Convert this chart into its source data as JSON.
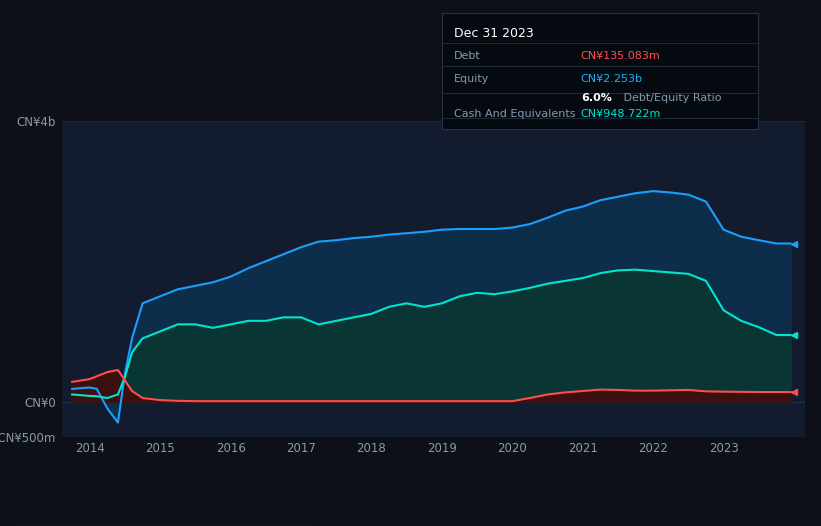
{
  "background_color": "#0d1117",
  "plot_bg_color": "#131b2e",
  "title_box": {
    "date": "Dec 31 2023",
    "debt_label": "Debt",
    "debt_value": "CN¥135.083m",
    "debt_color": "#ff4d4d",
    "equity_label": "Equity",
    "equity_value": "CN¥2.253b",
    "equity_color": "#1ab3ff",
    "ratio_value": "6.0%",
    "ratio_text": " Debt/Equity Ratio",
    "cash_label": "Cash And Equivalents",
    "cash_value": "CN¥948.722m",
    "cash_color": "#00e5cc"
  },
  "ylim": [
    -500,
    4000
  ],
  "ytick_positions": [
    -500,
    0,
    4000
  ],
  "ytick_labels": [
    "-CN¥500m",
    "CN¥0",
    "CN¥4b"
  ],
  "xlim": [
    2013.6,
    2024.15
  ],
  "xticks": [
    2014,
    2015,
    2016,
    2017,
    2018,
    2019,
    2020,
    2021,
    2022,
    2023
  ],
  "grid_color": "#1e2a3a",
  "equity_line_color": "#1a9fff",
  "equity_fill_color": "#0d2e4a",
  "cash_line_color": "#00e5cc",
  "cash_fill_color": "#0a3535",
  "debt_line_color": "#ff4d4d",
  "debt_fill_color": "#3a1010",
  "years": [
    2013.75,
    2014.0,
    2014.1,
    2014.25,
    2014.4,
    2014.5,
    2014.6,
    2014.75,
    2015.0,
    2015.25,
    2015.5,
    2015.75,
    2016.0,
    2016.25,
    2016.5,
    2016.75,
    2017.0,
    2017.25,
    2017.5,
    2017.75,
    2018.0,
    2018.25,
    2018.5,
    2018.75,
    2019.0,
    2019.25,
    2019.5,
    2019.75,
    2020.0,
    2020.25,
    2020.5,
    2020.75,
    2021.0,
    2021.25,
    2021.5,
    2021.75,
    2022.0,
    2022.25,
    2022.5,
    2022.75,
    2023.0,
    2023.25,
    2023.5,
    2023.75,
    2023.95
  ],
  "equity": [
    180,
    200,
    180,
    -100,
    -300,
    400,
    900,
    1400,
    1500,
    1600,
    1650,
    1700,
    1780,
    1900,
    2000,
    2100,
    2200,
    2280,
    2300,
    2330,
    2350,
    2380,
    2400,
    2420,
    2450,
    2460,
    2460,
    2460,
    2480,
    2530,
    2620,
    2720,
    2780,
    2870,
    2920,
    2970,
    3000,
    2980,
    2950,
    2850,
    2450,
    2350,
    2300,
    2253,
    2253
  ],
  "cash": [
    100,
    80,
    75,
    50,
    100,
    350,
    700,
    900,
    1000,
    1100,
    1100,
    1050,
    1100,
    1150,
    1150,
    1200,
    1200,
    1100,
    1150,
    1200,
    1250,
    1350,
    1400,
    1350,
    1400,
    1500,
    1550,
    1530,
    1570,
    1620,
    1680,
    1720,
    1760,
    1830,
    1870,
    1880,
    1860,
    1840,
    1820,
    1720,
    1300,
    1150,
    1060,
    948,
    948
  ],
  "debt": [
    280,
    320,
    360,
    420,
    450,
    300,
    150,
    50,
    20,
    10,
    5,
    5,
    5,
    5,
    5,
    5,
    5,
    5,
    5,
    5,
    5,
    5,
    5,
    5,
    5,
    5,
    5,
    5,
    5,
    50,
    100,
    130,
    150,
    170,
    165,
    155,
    155,
    160,
    165,
    145,
    140,
    138,
    135,
    135,
    135
  ],
  "legend": [
    {
      "label": "Debt",
      "color": "#ff4d4d"
    },
    {
      "label": "Equity",
      "color": "#1a9fff"
    },
    {
      "label": "Cash And Equivalents",
      "color": "#00e5cc"
    }
  ]
}
